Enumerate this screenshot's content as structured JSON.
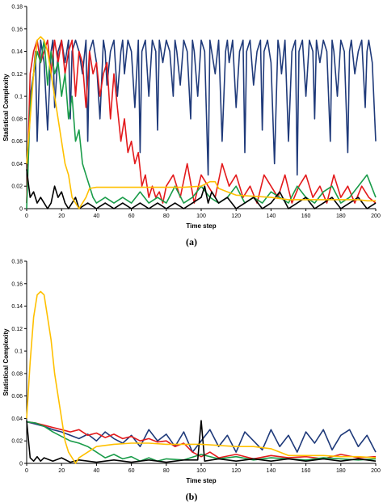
{
  "chart_data": [
    {
      "type": "line",
      "panel_label": "(a)",
      "xlabel": "Time step",
      "ylabel": "Statistical Complexity",
      "xlim": [
        0,
        200
      ],
      "ylim": [
        0,
        0.18
      ],
      "xticks": [
        0,
        20,
        40,
        60,
        80,
        100,
        120,
        140,
        160,
        180,
        200
      ],
      "yticks": [
        0,
        0.02,
        0.04,
        0.06,
        0.08,
        0.1,
        0.12,
        0.14,
        0.16,
        0.18
      ],
      "grid": false,
      "series": [
        {
          "color": "#1f3a7a",
          "x": [
            0,
            2,
            4,
            5,
            6,
            8,
            10,
            12,
            14,
            15,
            16,
            18,
            20,
            22,
            24,
            25,
            26,
            28,
            30,
            32,
            34,
            35,
            36,
            38,
            40,
            42,
            44,
            45,
            46,
            48,
            50,
            52,
            54,
            55,
            56,
            58,
            60,
            62,
            64,
            65,
            66,
            68,
            70,
            72,
            74,
            75,
            76,
            78,
            80,
            82,
            84,
            85,
            86,
            88,
            90,
            92,
            94,
            95,
            96,
            98,
            100,
            102,
            104,
            105,
            106,
            108,
            110,
            112,
            114,
            115,
            116,
            118,
            120,
            122,
            124,
            125,
            126,
            128,
            130,
            132,
            134,
            135,
            136,
            138,
            140,
            142,
            144,
            145,
            146,
            148,
            150,
            152,
            154,
            155,
            156,
            158,
            160,
            162,
            164,
            165,
            166,
            168,
            170,
            172,
            174,
            175,
            176,
            178,
            180,
            182,
            184,
            185,
            186,
            188,
            190,
            192,
            194,
            195,
            196,
            198,
            200
          ],
          "y": [
            0.005,
            0.1,
            0.12,
            0.14,
            0.06,
            0.15,
            0.13,
            0.07,
            0.14,
            0.15,
            0.09,
            0.14,
            0.15,
            0.13,
            0.15,
            0.08,
            0.14,
            0.15,
            0.14,
            0.12,
            0.15,
            0.06,
            0.14,
            0.15,
            0.13,
            0.08,
            0.15,
            0.14,
            0.11,
            0.14,
            0.15,
            0.1,
            0.14,
            0.15,
            0.12,
            0.15,
            0.14,
            0.09,
            0.15,
            0.05,
            0.14,
            0.15,
            0.1,
            0.15,
            0.14,
            0.07,
            0.15,
            0.13,
            0.15,
            0.14,
            0.1,
            0.15,
            0.14,
            0.11,
            0.15,
            0.14,
            0.08,
            0.15,
            0.14,
            0.1,
            0.15,
            0.14,
            0.03,
            0.15,
            0.14,
            0.12,
            0.15,
            0.06,
            0.14,
            0.15,
            0.13,
            0.15,
            0.09,
            0.14,
            0.15,
            0.05,
            0.14,
            0.15,
            0.11,
            0.14,
            0.15,
            0.07,
            0.14,
            0.15,
            0.13,
            0.04,
            0.15,
            0.14,
            0.12,
            0.15,
            0.06,
            0.14,
            0.15,
            0.03,
            0.14,
            0.15,
            0.1,
            0.15,
            0.14,
            0.08,
            0.15,
            0.13,
            0.15,
            0.14,
            0.06,
            0.15,
            0.14,
            0.1,
            0.15,
            0.14,
            0.05,
            0.14,
            0.15,
            0.12,
            0.14,
            0.15,
            0.09,
            0.14,
            0.15,
            0.13,
            0.06
          ]
        },
        {
          "color": "#e31a1c",
          "x": [
            0,
            2,
            4,
            6,
            8,
            10,
            12,
            14,
            16,
            18,
            20,
            22,
            24,
            26,
            28,
            30,
            32,
            34,
            36,
            38,
            40,
            42,
            44,
            46,
            48,
            50,
            52,
            54,
            56,
            58,
            60,
            62,
            64,
            66,
            68,
            70,
            72,
            74,
            76,
            78,
            80,
            84,
            88,
            92,
            96,
            100,
            104,
            108,
            112,
            116,
            120,
            124,
            128,
            132,
            136,
            140,
            144,
            148,
            152,
            156,
            160,
            164,
            168,
            172,
            176,
            180,
            184,
            188,
            192,
            196,
            200
          ],
          "y": [
            0.005,
            0.12,
            0.14,
            0.15,
            0.13,
            0.14,
            0.15,
            0.12,
            0.15,
            0.13,
            0.15,
            0.12,
            0.14,
            0.15,
            0.1,
            0.14,
            0.13,
            0.09,
            0.14,
            0.12,
            0.13,
            0.1,
            0.12,
            0.13,
            0.08,
            0.12,
            0.09,
            0.06,
            0.08,
            0.05,
            0.06,
            0.04,
            0.05,
            0.02,
            0.03,
            0.01,
            0.02,
            0.01,
            0.015,
            0.005,
            0.02,
            0.03,
            0.01,
            0.04,
            0.005,
            0.03,
            0.02,
            0.01,
            0.04,
            0.02,
            0.03,
            0.01,
            0.02,
            0.005,
            0.03,
            0.02,
            0.01,
            0.03,
            0.005,
            0.02,
            0.03,
            0.01,
            0.02,
            0.005,
            0.03,
            0.01,
            0.02,
            0.005,
            0.02,
            0.01,
            0.005
          ]
        },
        {
          "color": "#1a9c4a",
          "x": [
            0,
            2,
            4,
            6,
            8,
            10,
            12,
            14,
            16,
            18,
            20,
            22,
            24,
            26,
            28,
            30,
            32,
            34,
            36,
            38,
            40,
            45,
            50,
            55,
            60,
            65,
            70,
            75,
            80,
            85,
            90,
            95,
            100,
            105,
            110,
            115,
            120,
            125,
            130,
            135,
            140,
            145,
            150,
            155,
            160,
            165,
            170,
            175,
            180,
            185,
            190,
            195,
            200
          ],
          "y": [
            0.0,
            0.09,
            0.12,
            0.14,
            0.13,
            0.15,
            0.11,
            0.14,
            0.12,
            0.13,
            0.1,
            0.12,
            0.08,
            0.1,
            0.06,
            0.07,
            0.04,
            0.03,
            0.02,
            0.01,
            0.005,
            0.01,
            0.005,
            0.01,
            0.005,
            0.015,
            0.005,
            0.01,
            0.005,
            0.02,
            0.005,
            0.01,
            0.02,
            0.01,
            0.005,
            0.01,
            0.02,
            0.005,
            0.01,
            0.005,
            0.015,
            0.01,
            0.005,
            0.02,
            0.01,
            0.005,
            0.015,
            0.02,
            0.005,
            0.01,
            0.02,
            0.03,
            0.01
          ]
        },
        {
          "color": "#000000",
          "x": [
            0,
            2,
            4,
            6,
            8,
            10,
            12,
            14,
            16,
            18,
            20,
            22,
            24,
            26,
            28,
            30,
            35,
            40,
            45,
            50,
            55,
            60,
            65,
            70,
            75,
            80,
            85,
            90,
            95,
            100,
            102,
            104,
            106,
            110,
            115,
            120,
            125,
            130,
            135,
            140,
            145,
            150,
            155,
            160,
            165,
            170,
            175,
            180,
            185,
            190,
            195,
            200
          ],
          "y": [
            0.035,
            0.01,
            0.015,
            0.005,
            0.01,
            0.005,
            0.0,
            0.005,
            0.02,
            0.01,
            0.015,
            0.005,
            0.0,
            0.005,
            0.01,
            0.0,
            0.005,
            0.0,
            0.005,
            0.0,
            0.005,
            0.0,
            0.005,
            0.0,
            0.005,
            0.0,
            0.005,
            0.0,
            0.005,
            0.01,
            0.02,
            0.005,
            0.015,
            0.005,
            0.01,
            0.0,
            0.005,
            0.01,
            0.0,
            0.005,
            0.015,
            0.0,
            0.005,
            0.01,
            0.0,
            0.005,
            0.01,
            0.0,
            0.005,
            0.01,
            0.0,
            0.005
          ]
        },
        {
          "color": "#ffc000",
          "x": [
            0,
            2,
            4,
            6,
            8,
            10,
            12,
            14,
            16,
            18,
            20,
            22,
            24,
            26,
            28,
            30,
            32,
            34,
            36,
            40,
            50,
            60,
            70,
            80,
            90,
            100,
            105,
            108,
            110,
            115,
            120,
            130,
            140,
            150,
            160,
            170,
            180,
            190,
            195,
            200
          ],
          "y": [
            0.04,
            0.08,
            0.12,
            0.15,
            0.153,
            0.15,
            0.14,
            0.12,
            0.1,
            0.08,
            0.06,
            0.04,
            0.03,
            0.01,
            0.005,
            0.0,
            0.005,
            0.01,
            0.018,
            0.019,
            0.019,
            0.019,
            0.019,
            0.019,
            0.019,
            0.02,
            0.024,
            0.024,
            0.018,
            0.015,
            0.012,
            0.011,
            0.01,
            0.008,
            0.008,
            0.008,
            0.008,
            0.008,
            0.007,
            0.007
          ]
        }
      ]
    },
    {
      "type": "line",
      "panel_label": "(b)",
      "xlabel": "Time step",
      "ylabel": "Statistical Complexity",
      "xlim": [
        0,
        200
      ],
      "ylim": [
        0,
        0.18
      ],
      "xticks": [
        0,
        20,
        40,
        60,
        80,
        100,
        120,
        140,
        160,
        180,
        200
      ],
      "yticks": [
        0,
        0.02,
        0.04,
        0.06,
        0.08,
        0.1,
        0.12,
        0.14,
        0.16,
        0.18
      ],
      "grid": false,
      "series": [
        {
          "color": "#1f3a7a",
          "x": [
            0,
            5,
            10,
            15,
            20,
            25,
            30,
            35,
            40,
            45,
            50,
            55,
            60,
            65,
            70,
            75,
            80,
            85,
            90,
            95,
            100,
            105,
            110,
            115,
            120,
            125,
            130,
            135,
            140,
            145,
            150,
            155,
            160,
            165,
            170,
            175,
            180,
            185,
            190,
            195,
            200
          ],
          "y": [
            0.037,
            0.035,
            0.033,
            0.03,
            0.028,
            0.025,
            0.022,
            0.026,
            0.02,
            0.028,
            0.022,
            0.018,
            0.025,
            0.015,
            0.03,
            0.02,
            0.026,
            0.015,
            0.028,
            0.01,
            0.02,
            0.03,
            0.015,
            0.025,
            0.01,
            0.028,
            0.02,
            0.012,
            0.03,
            0.015,
            0.025,
            0.01,
            0.028,
            0.018,
            0.03,
            0.012,
            0.025,
            0.03,
            0.015,
            0.025,
            0.01
          ]
        },
        {
          "color": "#e31a1c",
          "x": [
            0,
            5,
            10,
            15,
            20,
            25,
            30,
            35,
            40,
            45,
            50,
            55,
            60,
            65,
            70,
            75,
            80,
            85,
            90,
            95,
            100,
            105,
            110,
            120,
            130,
            140,
            150,
            160,
            170,
            180,
            190,
            200
          ],
          "y": [
            0.037,
            0.036,
            0.034,
            0.032,
            0.03,
            0.028,
            0.03,
            0.025,
            0.027,
            0.023,
            0.026,
            0.022,
            0.024,
            0.02,
            0.022,
            0.019,
            0.02,
            0.015,
            0.018,
            0.01,
            0.006,
            0.01,
            0.005,
            0.008,
            0.004,
            0.007,
            0.005,
            0.006,
            0.004,
            0.008,
            0.005,
            0.006
          ]
        },
        {
          "color": "#1a9c4a",
          "x": [
            0,
            5,
            10,
            15,
            20,
            25,
            30,
            35,
            40,
            45,
            50,
            55,
            60,
            65,
            70,
            75,
            80,
            90,
            100,
            110,
            120,
            130,
            140,
            150,
            160,
            170,
            180,
            190,
            200
          ],
          "y": [
            0.037,
            0.036,
            0.033,
            0.028,
            0.024,
            0.02,
            0.018,
            0.015,
            0.01,
            0.005,
            0.008,
            0.004,
            0.006,
            0.002,
            0.005,
            0.002,
            0.004,
            0.003,
            0.008,
            0.004,
            0.006,
            0.003,
            0.005,
            0.004,
            0.003,
            0.005,
            0.004,
            0.003,
            0.004
          ]
        },
        {
          "color": "#000000",
          "x": [
            0,
            2,
            4,
            6,
            8,
            10,
            15,
            20,
            25,
            30,
            40,
            50,
            60,
            70,
            80,
            90,
            98,
            100,
            102,
            110,
            120,
            130,
            140,
            150,
            160,
            170,
            180,
            190,
            200
          ],
          "y": [
            0.038,
            0.005,
            0.002,
            0.006,
            0.002,
            0.005,
            0.002,
            0.005,
            0.001,
            0.003,
            0.001,
            0.003,
            0.001,
            0.003,
            0.001,
            0.003,
            0.003,
            0.038,
            0.002,
            0.004,
            0.002,
            0.004,
            0.002,
            0.004,
            0.002,
            0.004,
            0.002,
            0.004,
            0.002
          ]
        },
        {
          "color": "#ffc000",
          "x": [
            0,
            2,
            4,
            6,
            8,
            10,
            12,
            14,
            16,
            18,
            20,
            22,
            24,
            26,
            28,
            30,
            35,
            40,
            50,
            60,
            70,
            80,
            90,
            100,
            110,
            120,
            130,
            140,
            150,
            160,
            170,
            180,
            190,
            200
          ],
          "y": [
            0.04,
            0.09,
            0.13,
            0.15,
            0.153,
            0.15,
            0.13,
            0.11,
            0.08,
            0.06,
            0.04,
            0.02,
            0.01,
            0.005,
            0.0,
            0.005,
            0.01,
            0.015,
            0.017,
            0.018,
            0.018,
            0.017,
            0.017,
            0.017,
            0.016,
            0.015,
            0.015,
            0.013,
            0.007,
            0.007,
            0.007,
            0.006,
            0.006,
            0.005
          ]
        }
      ]
    }
  ]
}
